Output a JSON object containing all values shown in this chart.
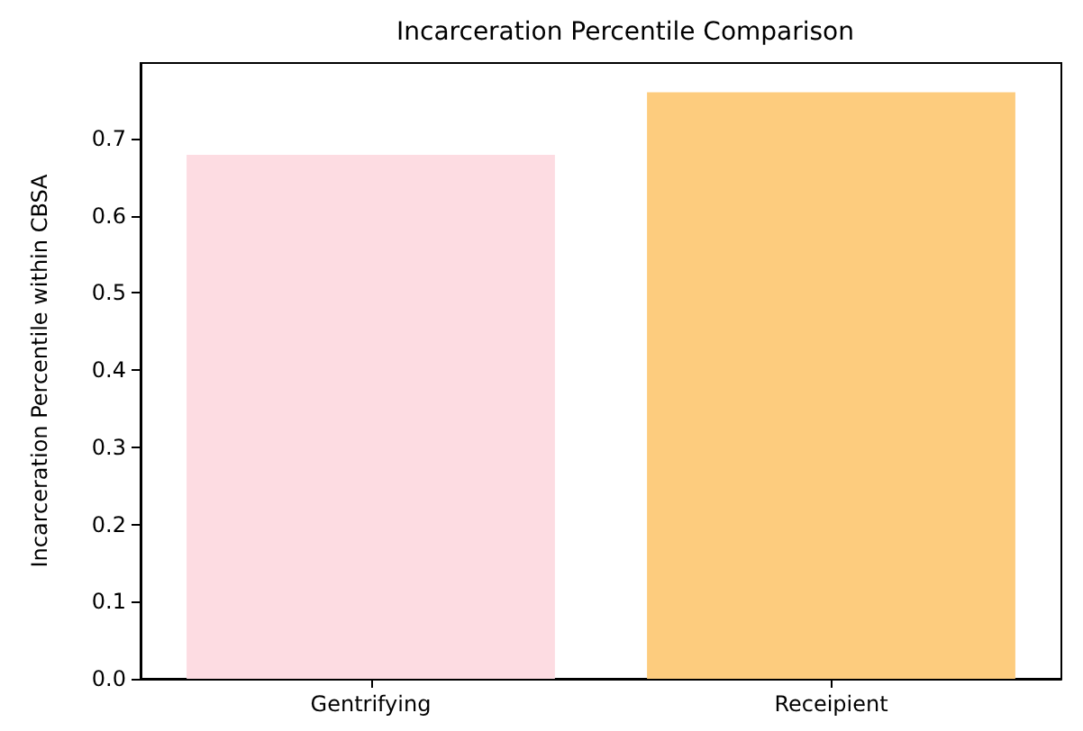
{
  "chart_data": {
    "type": "bar",
    "title": "Incarceration Percentile Comparison",
    "ylabel": "Incarceration Percentile within CBSA",
    "categories": [
      "Gentrifying",
      "Receipient"
    ],
    "values": [
      0.679,
      0.76
    ],
    "colors": [
      "#fddce2",
      "#fdcc7e"
    ],
    "ylim": [
      0,
      0.798
    ],
    "yticks": [
      {
        "value": 0,
        "label": "0.0"
      },
      0.1,
      0.2,
      0.3,
      0.4,
      0.5,
      0.6,
      0.7
    ],
    "grid": false
  }
}
